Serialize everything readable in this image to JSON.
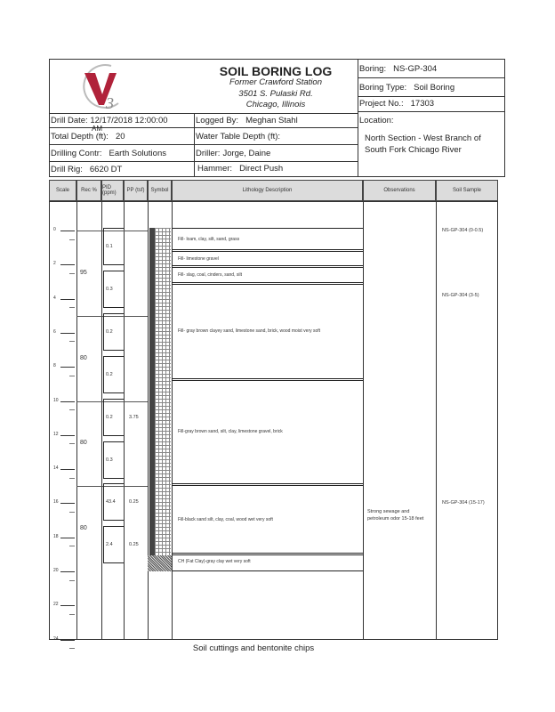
{
  "header": {
    "title": "SOIL BORING LOG",
    "site": "Former Crawford Station",
    "address": "3501 S. Pulaski Rd.",
    "city": "Chicago, Illinois",
    "logo_text": "V3",
    "boring_label": "Boring:",
    "boring": "NS-GP-304",
    "boring_type_label": "Boring Type:",
    "boring_type": "Soil Boring",
    "project_label": "Project No.:",
    "project": "17303",
    "drill_date_label": "Drill Date:",
    "drill_date": "12/17/2018 12:00:00",
    "drill_date_ampm": "AM",
    "total_depth_label": "Total Depth (ft):",
    "total_depth": "20",
    "drilling_contr_label": "Drilling Contr:",
    "drilling_contr": "Earth Solutions",
    "drill_rig_label": "Drill Rig:",
    "drill_rig": "6620 DT",
    "logged_by_label": "Logged By:",
    "logged_by": "Meghan Stahl",
    "water_table_label": "Water Table Depth (ft):",
    "driller_label": "Driller:",
    "driller": "Jorge, Daine",
    "hammer_label": "Hammer:",
    "hammer": "Direct Push",
    "location_label": "Location:",
    "location": "North Section - West Branch of South Fork Chicago River"
  },
  "columns": [
    "Scale",
    "Rec %",
    "PID (ppm)",
    "PP (tsf)",
    "Symbol",
    "Lithology Description",
    "Observations",
    "Soil Sample"
  ],
  "scale_labels": [
    "0",
    "2",
    "4",
    "6",
    "8",
    "10",
    "12",
    "14",
    "16",
    "18",
    "20",
    "22",
    "24"
  ],
  "recovery": [
    {
      "from": 0,
      "to": 5,
      "value": "95"
    },
    {
      "from": 5,
      "to": 10,
      "value": "80"
    },
    {
      "from": 10,
      "to": 15,
      "value": "80"
    },
    {
      "from": 15,
      "to": 20,
      "value": "80"
    }
  ],
  "pid": [
    {
      "at": 1,
      "value": "0.1"
    },
    {
      "at": 3.5,
      "value": "0.3"
    },
    {
      "at": 6,
      "value": "0.2"
    },
    {
      "at": 8.5,
      "value": "0.2"
    },
    {
      "at": 11,
      "value": "0.2"
    },
    {
      "at": 13.5,
      "value": "0.3"
    },
    {
      "at": 16,
      "value": "43.4"
    },
    {
      "at": 18.5,
      "value": "2.4"
    }
  ],
  "pp": [
    {
      "at": 11,
      "value": "3.75"
    },
    {
      "at": 16,
      "value": "0.25"
    },
    {
      "at": 18.5,
      "value": "0.25"
    }
  ],
  "lithology": [
    {
      "from": 0,
      "to": 1.25,
      "text": "Fill- loam, clay, silt, sand, grass"
    },
    {
      "from": 1.25,
      "to": 2.2,
      "text": "Fill- limestone gravel"
    },
    {
      "from": 2.2,
      "to": 3.2,
      "text": "Fill- slag, coal, cinders, sand, silt"
    },
    {
      "from": 3.2,
      "to": 8.8,
      "text": "Fill- gray brown clayey sand, limestone sand, brick, wood moist very soft"
    },
    {
      "from": 8.8,
      "to": 15,
      "text": "Fill-gray brown sand, silt, clay, limestone gravel, brick"
    },
    {
      "from": 15,
      "to": 19.05,
      "text": "Fill-black sand silt, clay, coal, wood wet very soft"
    },
    {
      "from": 19.05,
      "to": 20,
      "text": "CH (Fat Clay)-gray clay wet very soft"
    }
  ],
  "observations": [
    {
      "at": 16.8,
      "text": "Strong sewage and petroleum odor 15-18 feet"
    }
  ],
  "soil_samples": [
    {
      "at": 0,
      "text": "NS-GP-304 (0-0.5)"
    },
    {
      "at": 3.8,
      "text": "NS-GP-304 (3-5)"
    },
    {
      "at": 16,
      "text": "NS-GP-304 (15-17)"
    }
  ],
  "footer_note": "Soil cuttings and bentonite chips"
}
